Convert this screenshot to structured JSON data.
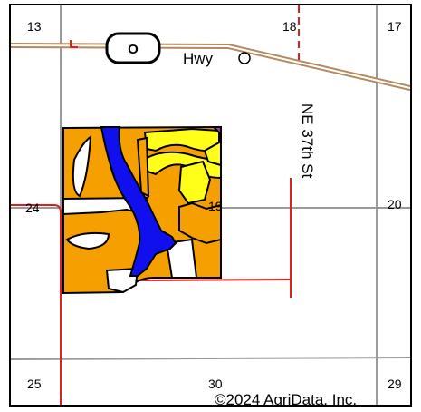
{
  "colors": {
    "background": "#ffffff",
    "section_line": "#9a9a9a",
    "highway": "#b38a5e",
    "road": "#e0201b",
    "soil_orange": "#f5a000",
    "soil_blue": "#1010ee",
    "soil_yellow": "#ffff1a",
    "soil_purple": "#b030b0",
    "outline": "#000000"
  },
  "sections": {
    "s13": "13",
    "s18": "18",
    "s17": "17",
    "s24": "24",
    "s19": "19",
    "s20": "20",
    "s25": "25",
    "s30": "30",
    "s29": "29"
  },
  "roads": {
    "highway_shield": "O",
    "highway_label": "Hwy",
    "highway_end_marker": "O",
    "street_label": "NE 37th St"
  },
  "copyright": "©2024 AgriData, Inc.",
  "icons": {
    "highway_shield": "highway-shield-icon",
    "field_boundary": "field-boundary",
    "soil_polygons": "soil-map-units"
  }
}
